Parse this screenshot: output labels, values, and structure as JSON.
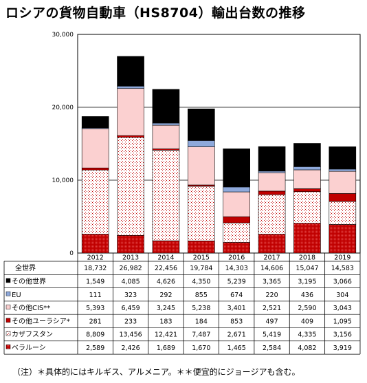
{
  "title": "ロシアの貨物自動車（HS8704）輸出台数の推移",
  "footnote": "（注）＊具体的にはキルギス、アルメニア。＊＊便宜的にジョージアも含む。",
  "chart_data": {
    "type": "bar",
    "stacked": true,
    "categories": [
      "2012",
      "2013",
      "2014",
      "2015",
      "2016",
      "2017",
      "2018",
      "2019"
    ],
    "ylim": [
      0,
      30000
    ],
    "yticks": [
      "0",
      "10,000",
      "20,000",
      "30,000"
    ],
    "grid": true,
    "table": {
      "total_label": "全世界",
      "total_values": [
        "18,732",
        "26,982",
        "22,456",
        "19,784",
        "14,303",
        "14,606",
        "15,047",
        "14,583"
      ]
    },
    "series": [
      {
        "name": "その他世界",
        "values": [
          1549,
          4085,
          4626,
          4350,
          5239,
          3365,
          3195,
          3066
        ],
        "display": [
          "1,549",
          "4,085",
          "4,626",
          "4,350",
          "5,239",
          "3,365",
          "3,195",
          "3,066"
        ],
        "color": "#000000",
        "pattern": "solid"
      },
      {
        "name": "EU",
        "values": [
          111,
          323,
          292,
          855,
          674,
          220,
          436,
          304
        ],
        "display": [
          "111",
          "323",
          "292",
          "855",
          "674",
          "220",
          "436",
          "304"
        ],
        "color": "#8ea9db",
        "pattern": "solid"
      },
      {
        "name": "その他CIS**",
        "values": [
          5393,
          6459,
          3245,
          5238,
          3401,
          2521,
          2590,
          3043
        ],
        "display": [
          "5,393",
          "6,459",
          "3,245",
          "5,238",
          "3,401",
          "2,521",
          "2,590",
          "3,043"
        ],
        "color": "#fbd0d0",
        "pattern": "solid"
      },
      {
        "name": "その他ユーラシア*",
        "values": [
          281,
          233,
          183,
          184,
          853,
          497,
          409,
          1095
        ],
        "display": [
          "281",
          "233",
          "183",
          "184",
          "853",
          "497",
          "409",
          "1,095"
        ],
        "color": "#c00000",
        "pattern": "solid"
      },
      {
        "name": "カザフスタン",
        "values": [
          8809,
          13456,
          12421,
          7487,
          2671,
          5419,
          4335,
          3156
        ],
        "display": [
          "8,809",
          "13,456",
          "12,421",
          "7,487",
          "2,671",
          "5,419",
          "4,335",
          "3,156"
        ],
        "color": "#c00000",
        "pattern": "dots"
      },
      {
        "name": "ベラルーシ",
        "values": [
          2589,
          2426,
          1689,
          1670,
          1465,
          2584,
          4082,
          3919
        ],
        "display": [
          "2,589",
          "2,426",
          "1,689",
          "1,670",
          "1,465",
          "2,584",
          "4,082",
          "3,919"
        ],
        "color": "#c00000",
        "pattern": "dots-dense"
      }
    ]
  }
}
